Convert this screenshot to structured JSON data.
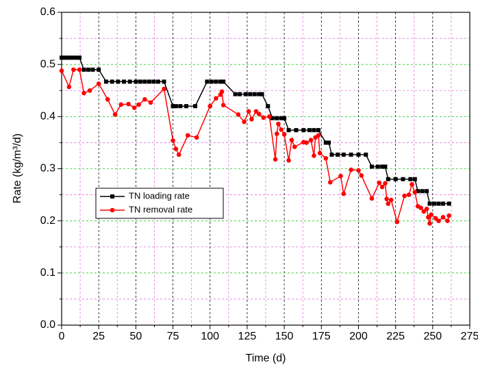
{
  "chart_data": {
    "type": "line",
    "xlabel": "Time (d)",
    "ylabel": "Rate (kg/m³/d)",
    "xlim": [
      0,
      275
    ],
    "ylim": [
      0,
      0.6
    ],
    "xticks": [
      0,
      25,
      50,
      75,
      100,
      125,
      150,
      175,
      200,
      225,
      250,
      275
    ],
    "yticks": [
      {
        "value": 0,
        "label": "0.0"
      },
      0.1,
      0.2,
      0.3,
      0.4,
      0.5,
      0.6
    ],
    "xminor": [
      12.5,
      37.5,
      62.5,
      87.5,
      112.5,
      137.5,
      162.5,
      187.5,
      212.5,
      237.5,
      262.5
    ],
    "yminor": [
      0.05,
      0.15,
      0.25,
      0.35,
      0.45,
      0.55
    ],
    "grid": true,
    "legend": "center-left",
    "series": [
      {
        "name": "TN loading rate",
        "color": "#000000",
        "marker": "square",
        "x": [
          0,
          2,
          4,
          6,
          8,
          10,
          12,
          15,
          18,
          21,
          25,
          30,
          34,
          38,
          42,
          46,
          50,
          53,
          56,
          59,
          62,
          65,
          69,
          75,
          77,
          80,
          84,
          90,
          98,
          101,
          104,
          107,
          109,
          117,
          120,
          124,
          127,
          130,
          133,
          135,
          139,
          142,
          145,
          148,
          150,
          153,
          158,
          163,
          167,
          170,
          173,
          178,
          180,
          182,
          186,
          190,
          195,
          200,
          205,
          209,
          213,
          216,
          218,
          220,
          225,
          230,
          235,
          238,
          240,
          243,
          246,
          248,
          251,
          254,
          257,
          261
        ],
        "values": [
          0.513,
          0.513,
          0.513,
          0.513,
          0.513,
          0.513,
          0.513,
          0.49,
          0.49,
          0.49,
          0.49,
          0.467,
          0.467,
          0.467,
          0.467,
          0.467,
          0.467,
          0.467,
          0.467,
          0.467,
          0.467,
          0.467,
          0.467,
          0.42,
          0.42,
          0.42,
          0.42,
          0.42,
          0.467,
          0.467,
          0.467,
          0.467,
          0.467,
          0.443,
          0.443,
          0.443,
          0.443,
          0.443,
          0.443,
          0.443,
          0.42,
          0.397,
          0.397,
          0.397,
          0.397,
          0.374,
          0.374,
          0.374,
          0.374,
          0.374,
          0.374,
          0.35,
          0.35,
          0.327,
          0.327,
          0.327,
          0.327,
          0.327,
          0.327,
          0.304,
          0.304,
          0.304,
          0.304,
          0.28,
          0.28,
          0.28,
          0.28,
          0.28,
          0.257,
          0.257,
          0.257,
          0.233,
          0.233,
          0.233,
          0.233,
          0.233
        ]
      },
      {
        "name": "TN removal rate",
        "color": "#ff0000",
        "marker": "circle",
        "x": [
          0,
          5,
          8,
          12,
          15,
          19,
          25,
          31,
          36,
          40,
          45,
          49,
          52,
          56,
          60,
          69,
          75,
          77,
          79,
          85,
          91,
          100,
          104,
          107,
          108,
          109,
          119,
          123,
          126,
          128,
          131,
          133,
          136,
          140,
          144,
          145,
          146,
          148,
          150,
          153,
          155,
          157,
          163,
          165,
          168,
          170,
          171,
          173,
          174,
          178,
          181,
          188,
          190,
          195,
          200,
          202,
          209,
          214,
          216,
          218,
          219,
          220,
          222,
          226,
          231,
          234,
          236,
          238,
          240,
          242,
          244,
          246,
          247,
          248,
          249,
          252,
          254,
          257,
          260,
          261
        ],
        "values": [
          0.488,
          0.457,
          0.49,
          0.49,
          0.445,
          0.45,
          0.463,
          0.433,
          0.404,
          0.423,
          0.424,
          0.417,
          0.423,
          0.433,
          0.427,
          0.453,
          0.354,
          0.338,
          0.327,
          0.364,
          0.36,
          0.42,
          0.435,
          0.442,
          0.448,
          0.422,
          0.404,
          0.39,
          0.41,
          0.395,
          0.41,
          0.405,
          0.398,
          0.4,
          0.318,
          0.367,
          0.386,
          0.375,
          0.366,
          0.316,
          0.355,
          0.342,
          0.351,
          0.35,
          0.355,
          0.325,
          0.36,
          0.364,
          0.33,
          0.32,
          0.274,
          0.286,
          0.252,
          0.298,
          0.297,
          0.287,
          0.243,
          0.273,
          0.265,
          0.272,
          0.242,
          0.233,
          0.24,
          0.198,
          0.248,
          0.25,
          0.27,
          0.255,
          0.228,
          0.225,
          0.218,
          0.223,
          0.207,
          0.195,
          0.212,
          0.205,
          0.2,
          0.207,
          0.2,
          0.21
        ]
      }
    ]
  }
}
